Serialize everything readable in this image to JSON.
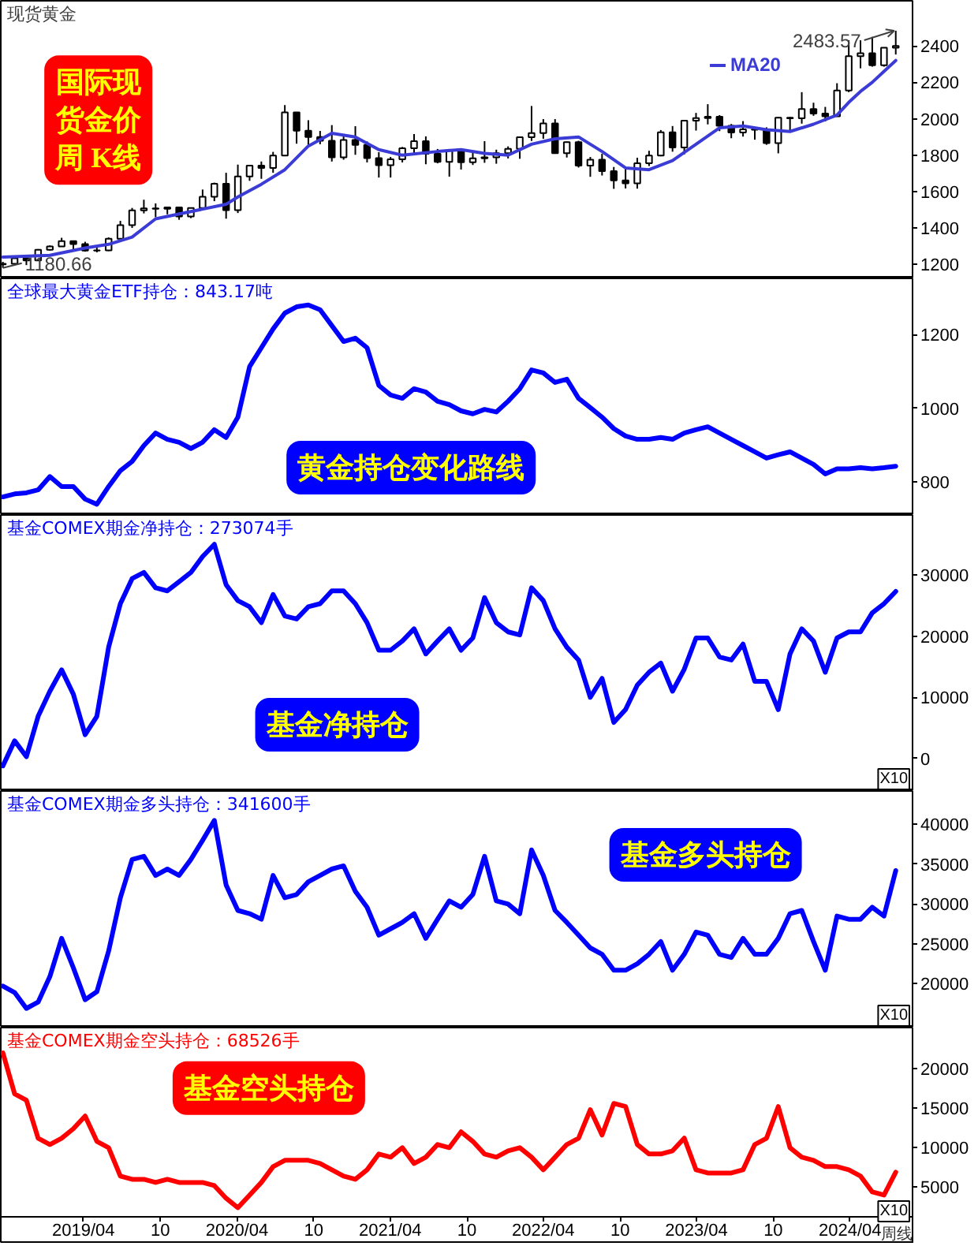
{
  "chart_data": [
    {
      "type": "candlestick",
      "title": "现货黄金",
      "color": "#000000",
      "x": [
        "2018-09-21",
        "2018-10-19",
        "2018-11-16",
        "2018-12-14",
        "2019-01-11",
        "2019-02-08",
        "2019-03-08",
        "2019-04-05",
        "2019-05-03",
        "2019-05-31",
        "2019-06-28",
        "2019-07-26",
        "2019-08-23",
        "2019-09-20",
        "2019-10-18",
        "2019-11-15",
        "2019-12-13",
        "2020-01-10",
        "2020-02-07",
        "2020-03-06",
        "2020-04-03",
        "2020-05-01",
        "2020-05-29",
        "2020-06-26",
        "2020-07-24",
        "2020-08-21",
        "2020-09-18",
        "2020-10-16",
        "2020-11-13",
        "2020-12-11",
        "2021-01-08",
        "2021-02-05",
        "2021-03-05",
        "2021-04-02",
        "2021-04-30",
        "2021-05-28",
        "2021-06-25",
        "2021-07-23",
        "2021-08-20",
        "2021-09-17",
        "2021-10-15",
        "2021-11-12",
        "2021-12-10",
        "2022-01-07",
        "2022-02-04",
        "2022-03-04",
        "2022-04-01",
        "2022-04-29",
        "2022-05-27",
        "2022-06-24",
        "2022-07-22",
        "2022-08-19",
        "2022-09-16",
        "2022-10-14",
        "2022-11-11",
        "2022-12-09",
        "2023-01-06",
        "2023-02-03",
        "2023-03-03",
        "2023-03-31",
        "2023-04-28",
        "2023-05-26",
        "2023-06-23",
        "2023-07-21",
        "2023-08-18",
        "2023-09-15",
        "2023-10-13",
        "2023-11-10",
        "2023-12-08",
        "2024-01-05",
        "2024-02-02",
        "2024-03-01",
        "2024-03-29",
        "2024-04-26",
        "2024-05-24",
        "2024-06-21",
        "2024-07-19"
      ],
      "ohlc": [
        [
          1200,
          1214,
          1180.66,
          1203
        ],
        [
          1203,
          1243,
          1200,
          1233
        ],
        [
          1233,
          1237,
          1196,
          1222
        ],
        [
          1222,
          1284,
          1221,
          1280
        ],
        [
          1280,
          1304,
          1276,
          1298
        ],
        [
          1298,
          1346,
          1297,
          1328
        ],
        [
          1328,
          1330,
          1281,
          1312
        ],
        [
          1312,
          1324,
          1270,
          1276
        ],
        [
          1276,
          1303,
          1266,
          1277
        ],
        [
          1277,
          1348,
          1273,
          1341
        ],
        [
          1341,
          1439,
          1340,
          1415
        ],
        [
          1415,
          1510,
          1400,
          1497
        ],
        [
          1497,
          1555,
          1480,
          1507
        ],
        [
          1507,
          1535,
          1459,
          1505
        ],
        [
          1505,
          1517,
          1475,
          1513
        ],
        [
          1513,
          1515,
          1445,
          1463
        ],
        [
          1463,
          1513,
          1454,
          1510
        ],
        [
          1510,
          1611,
          1508,
          1571
        ],
        [
          1571,
          1649,
          1547,
          1643
        ],
        [
          1643,
          1703,
          1451,
          1498
        ],
        [
          1498,
          1748,
          1482,
          1683
        ],
        [
          1683,
          1747,
          1659,
          1743
        ],
        [
          1743,
          1765,
          1670,
          1729
        ],
        [
          1729,
          1818,
          1703,
          1798
        ],
        [
          1798,
          2075,
          1795,
          2035
        ],
        [
          2035,
          2036,
          1863,
          1934
        ],
        [
          1934,
          1992,
          1848,
          1900
        ],
        [
          1900,
          1933,
          1860,
          1879
        ],
        [
          1879,
          1965,
          1765,
          1788
        ],
        [
          1788,
          1906,
          1775,
          1883
        ],
        [
          1883,
          1959,
          1802,
          1856
        ],
        [
          1856,
          1875,
          1760,
          1784
        ],
        [
          1784,
          1816,
          1677,
          1745
        ],
        [
          1745,
          1790,
          1677,
          1777
        ],
        [
          1777,
          1845,
          1760,
          1838
        ],
        [
          1838,
          1916,
          1808,
          1877
        ],
        [
          1877,
          1903,
          1750,
          1808
        ],
        [
          1808,
          1834,
          1755,
          1763
        ],
        [
          1763,
          1834,
          1682,
          1827
        ],
        [
          1827,
          1834,
          1721,
          1761
        ],
        [
          1761,
          1814,
          1746,
          1783
        ],
        [
          1783,
          1877,
          1758,
          1788
        ],
        [
          1788,
          1830,
          1753,
          1811
        ],
        [
          1811,
          1848,
          1782,
          1835
        ],
        [
          1835,
          1902,
          1780,
          1898
        ],
        [
          1898,
          2070,
          1878,
          1921
        ],
        [
          1921,
          1998,
          1890,
          1974
        ],
        [
          1974,
          1998,
          1808,
          1811
        ],
        [
          1811,
          1874,
          1787,
          1871
        ],
        [
          1871,
          1879,
          1732,
          1742
        ],
        [
          1742,
          1790,
          1681,
          1775
        ],
        [
          1775,
          1807,
          1688,
          1712
        ],
        [
          1712,
          1735,
          1615,
          1661
        ],
        [
          1661,
          1729,
          1617,
          1645
        ],
        [
          1645,
          1786,
          1616,
          1755
        ],
        [
          1755,
          1824,
          1740,
          1798
        ],
        [
          1798,
          1938,
          1794,
          1926
        ],
        [
          1926,
          1960,
          1819,
          1842
        ],
        [
          1842,
          1990,
          1804,
          1989
        ],
        [
          1989,
          2032,
          1935,
          2004
        ],
        [
          2004,
          2080,
          1969,
          2011
        ],
        [
          2011,
          2020,
          1932,
          1961
        ],
        [
          1961,
          1971,
          1893,
          1925
        ],
        [
          1925,
          1987,
          1902,
          1942
        ],
        [
          1942,
          1949,
          1885,
          1940
        ],
        [
          1940,
          1953,
          1857,
          1866
        ],
        [
          1866,
          2009,
          1810,
          2006
        ],
        [
          2006,
          2009,
          1931,
          2002
        ],
        [
          2002,
          2146,
          1973,
          2053
        ],
        [
          2053,
          2088,
          2016,
          2029
        ],
        [
          2029,
          2065,
          1985,
          2013
        ],
        [
          2013,
          2195,
          2011,
          2155
        ],
        [
          2155,
          2431,
          2146,
          2344
        ],
        [
          2344,
          2431,
          2277,
          2360
        ],
        [
          2360,
          2450,
          2286,
          2294
        ],
        [
          2294,
          2392,
          2286,
          2390
        ],
        [
          2390,
          2483.57,
          2353,
          2400
        ]
      ],
      "series": [
        {
          "type": "line",
          "name": "MA20",
          "color": "#3b3bd6",
          "x": [
            "2018-09-21",
            "2019-01-11",
            "2019-04-05",
            "2019-05-31",
            "2019-07-26",
            "2019-09-20",
            "2019-12-13",
            "2020-03-06",
            "2020-04-03",
            "2020-05-29",
            "2020-07-24",
            "2020-09-18",
            "2020-11-13",
            "2021-01-08",
            "2021-03-05",
            "2021-04-30",
            "2021-07-23",
            "2021-09-17",
            "2021-11-12",
            "2022-01-07",
            "2022-03-04",
            "2022-04-29",
            "2022-06-24",
            "2022-08-19",
            "2022-10-14",
            "2022-12-09",
            "2023-02-03",
            "2023-03-31",
            "2023-05-26",
            "2023-07-21",
            "2023-09-15",
            "2023-11-10",
            "2024-01-05",
            "2024-03-01",
            "2024-03-29",
            "2024-04-26",
            "2024-05-24",
            "2024-06-21",
            "2024-07-19"
          ],
          "values": [
            1240,
            1250,
            1290,
            1310,
            1350,
            1450,
            1490,
            1530,
            1570,
            1640,
            1720,
            1850,
            1920,
            1900,
            1830,
            1800,
            1820,
            1830,
            1810,
            1800,
            1860,
            1890,
            1900,
            1820,
            1730,
            1720,
            1770,
            1860,
            1950,
            1960,
            1940,
            1930,
            1970,
            2020,
            2090,
            2150,
            2200,
            2260,
            2320
          ]
        }
      ],
      "xlim": [
        "2018-09-16",
        "2024-08-28"
      ],
      "ylim": [
        1123,
        2648
      ],
      "yticks": [
        1200,
        1400,
        1600,
        1800,
        2000,
        2200,
        2400
      ],
      "tick_labels": "y",
      "legend": "top right",
      "annotations": [
        "国际现货金价周 K线",
        {
          "text": "2483.57",
          "x": "2024-07-19",
          "y": 2483.57
        },
        {
          "text": "1180.66",
          "x": "2018-09-21",
          "y": 1180.66
        }
      ]
    },
    {
      "type": "line",
      "title": "全球最大黄金ETF持仓：843.17吨",
      "x": [
        "2018-09-21",
        "2018-10-19",
        "2018-11-16",
        "2018-12-14",
        "2019-01-11",
        "2019-02-08",
        "2019-03-08",
        "2019-04-05",
        "2019-05-03",
        "2019-05-31",
        "2019-06-28",
        "2019-07-26",
        "2019-08-23",
        "2019-09-20",
        "2019-10-18",
        "2019-11-15",
        "2019-12-13",
        "2020-01-10",
        "2020-02-07",
        "2020-03-06",
        "2020-04-03",
        "2020-05-01",
        "2020-05-29",
        "2020-06-26",
        "2020-07-24",
        "2020-08-21",
        "2020-09-18",
        "2020-10-16",
        "2020-11-13",
        "2020-12-11",
        "2021-01-08",
        "2021-02-05",
        "2021-03-05",
        "2021-04-02",
        "2021-04-30",
        "2021-05-28",
        "2021-06-25",
        "2021-07-23",
        "2021-08-20",
        "2021-09-17",
        "2021-10-15",
        "2021-11-12",
        "2021-12-10",
        "2022-01-07",
        "2022-02-04",
        "2022-03-04",
        "2022-04-01",
        "2022-04-29",
        "2022-05-27",
        "2022-06-24",
        "2022-07-22",
        "2022-08-19",
        "2022-09-16",
        "2022-10-14",
        "2022-11-11",
        "2022-12-09",
        "2023-01-06",
        "2023-02-03",
        "2023-03-03",
        "2023-03-31",
        "2023-04-28",
        "2023-05-26",
        "2023-06-23",
        "2023-07-21",
        "2023-08-18",
        "2023-09-15",
        "2023-10-13",
        "2023-11-10",
        "2023-12-08",
        "2024-01-05",
        "2024-02-02",
        "2024-03-01",
        "2024-03-29",
        "2024-04-26",
        "2024-05-24",
        "2024-06-21",
        "2024-07-19"
      ],
      "series": [
        {
          "color": "#0000ff",
          "values": [
            760,
            768,
            771,
            779,
            815,
            788,
            788,
            754,
            740,
            788,
            831,
            856,
            899,
            933,
            916,
            908,
            891,
            908,
            942,
            921,
            976,
            1113,
            1164,
            1215,
            1258,
            1275,
            1280,
            1267,
            1224,
            1181,
            1190,
            1164,
            1062,
            1036,
            1027,
            1053,
            1044,
            1019,
            1010,
            993,
            985,
            997,
            990,
            1019,
            1053,
            1104,
            1096,
            1070,
            1079,
            1027,
            1002,
            976,
            945,
            925,
            916,
            916,
            921,
            916,
            933,
            942,
            950,
            933,
            916,
            899,
            882,
            865,
            874,
            882,
            865,
            848,
            822,
            836,
            836,
            839,
            836,
            839,
            843
          ]
        }
      ],
      "xlim": [
        "2018-09-16",
        "2024-08-28"
      ],
      "ylim": [
        711,
        1352
      ],
      "yticks": [
        800,
        1000,
        1200
      ],
      "tick_labels": "y",
      "annotations": [
        "黄金持仓变化路线"
      ]
    },
    {
      "type": "line",
      "title": "基金COMEX期金净持仓：273074手",
      "x": [
        "2018-09-21",
        "2018-10-19",
        "2018-11-16",
        "2018-12-14",
        "2019-01-11",
        "2019-02-08",
        "2019-03-08",
        "2019-04-05",
        "2019-05-03",
        "2019-05-31",
        "2019-06-28",
        "2019-07-26",
        "2019-08-23",
        "2019-09-20",
        "2019-10-18",
        "2019-11-15",
        "2019-12-13",
        "2020-01-10",
        "2020-02-07",
        "2020-03-06",
        "2020-04-03",
        "2020-05-01",
        "2020-05-29",
        "2020-06-26",
        "2020-07-24",
        "2020-08-21",
        "2020-09-18",
        "2020-10-16",
        "2020-11-13",
        "2020-12-11",
        "2021-01-08",
        "2021-02-05",
        "2021-03-05",
        "2021-04-02",
        "2021-04-30",
        "2021-05-28",
        "2021-06-25",
        "2021-07-23",
        "2021-08-20",
        "2021-09-17",
        "2021-10-15",
        "2021-11-12",
        "2021-12-10",
        "2022-01-07",
        "2022-02-04",
        "2022-03-04",
        "2022-04-01",
        "2022-04-29",
        "2022-05-27",
        "2022-06-24",
        "2022-07-22",
        "2022-08-19",
        "2022-09-16",
        "2022-10-14",
        "2022-11-11",
        "2022-12-09",
        "2023-01-06",
        "2023-02-03",
        "2023-03-03",
        "2023-03-31",
        "2023-04-28",
        "2023-05-26",
        "2023-06-23",
        "2023-07-21",
        "2023-08-18",
        "2023-09-15",
        "2023-10-13",
        "2023-11-10",
        "2023-12-08",
        "2024-01-05",
        "2024-02-02",
        "2024-03-01",
        "2024-03-29",
        "2024-04-26",
        "2024-05-24",
        "2024-06-21",
        "2024-07-19"
      ],
      "series": [
        {
          "color": "#0000ff",
          "values": [
            -1200,
            2900,
            300,
            6900,
            11000,
            14500,
            10500,
            3900,
            6900,
            18200,
            25300,
            29400,
            30400,
            27900,
            27400,
            28900,
            30400,
            33000,
            35000,
            28400,
            25800,
            24800,
            22200,
            26800,
            23300,
            22800,
            24800,
            25300,
            27400,
            27400,
            25300,
            22200,
            17700,
            17700,
            19200,
            21200,
            17100,
            19200,
            21200,
            17700,
            19700,
            26300,
            22200,
            20700,
            20200,
            27900,
            25800,
            21200,
            18200,
            16100,
            10000,
            13100,
            5900,
            8000,
            12000,
            14100,
            15600,
            11000,
            14600,
            19700,
            19700,
            16600,
            16100,
            18700,
            12600,
            12600,
            8000,
            17100,
            21200,
            19200,
            14100,
            19700,
            20700,
            20700,
            23800,
            25300,
            27300
          ]
        }
      ],
      "xlim": [
        "2018-09-16",
        "2024-08-28"
      ],
      "ylim": [
        -5300,
        39800
      ],
      "yticks": [
        0,
        10000,
        20000,
        30000
      ],
      "tick_labels": "y",
      "annotations": [
        "基金净持仓",
        "X10"
      ]
    },
    {
      "type": "line",
      "title": "基金COMEX期金多头持仓：341600手",
      "x": [
        "2018-09-21",
        "2018-10-19",
        "2018-11-16",
        "2018-12-14",
        "2019-01-11",
        "2019-02-08",
        "2019-03-08",
        "2019-04-05",
        "2019-05-03",
        "2019-05-31",
        "2019-06-28",
        "2019-07-26",
        "2019-08-23",
        "2019-09-20",
        "2019-10-18",
        "2019-11-15",
        "2019-12-13",
        "2020-01-10",
        "2020-02-07",
        "2020-03-06",
        "2020-04-03",
        "2020-05-01",
        "2020-05-29",
        "2020-06-26",
        "2020-07-24",
        "2020-08-21",
        "2020-09-18",
        "2020-10-16",
        "2020-11-13",
        "2020-12-11",
        "2021-01-08",
        "2021-02-05",
        "2021-03-05",
        "2021-04-02",
        "2021-04-30",
        "2021-05-28",
        "2021-06-25",
        "2021-07-23",
        "2021-08-20",
        "2021-09-17",
        "2021-10-15",
        "2021-11-12",
        "2021-12-10",
        "2022-01-07",
        "2022-02-04",
        "2022-03-04",
        "2022-04-01",
        "2022-04-29",
        "2022-05-27",
        "2022-06-24",
        "2022-07-22",
        "2022-08-19",
        "2022-09-16",
        "2022-10-14",
        "2022-11-11",
        "2022-12-09",
        "2023-01-06",
        "2023-02-03",
        "2023-03-03",
        "2023-03-31",
        "2023-04-28",
        "2023-05-26",
        "2023-06-23",
        "2023-07-21",
        "2023-08-18",
        "2023-09-15",
        "2023-10-13",
        "2023-11-10",
        "2023-12-08",
        "2024-01-05",
        "2024-02-02",
        "2024-03-01",
        "2024-03-29",
        "2024-04-26",
        "2024-05-24",
        "2024-06-21",
        "2024-07-19"
      ],
      "series": [
        {
          "color": "#0000ff",
          "values": [
            19700,
            18900,
            16900,
            17700,
            20900,
            25700,
            22000,
            18000,
            19000,
            24100,
            30800,
            35600,
            36000,
            33600,
            34400,
            33600,
            35600,
            38000,
            40500,
            32400,
            29200,
            28800,
            28100,
            33600,
            30800,
            31200,
            32800,
            33600,
            34400,
            34800,
            31600,
            29600,
            26100,
            26900,
            27700,
            28800,
            25700,
            28100,
            30400,
            29600,
            31200,
            36000,
            30400,
            30000,
            28800,
            36800,
            33600,
            29200,
            27700,
            26100,
            24500,
            23700,
            21700,
            21700,
            22500,
            23700,
            25300,
            21700,
            23700,
            26500,
            26100,
            23700,
            23300,
            25700,
            23700,
            23700,
            25700,
            28800,
            29200,
            25300,
            21700,
            28500,
            28100,
            28100,
            29600,
            28500,
            34200
          ]
        }
      ],
      "xlim": [
        "2018-09-16",
        "2024-08-28"
      ],
      "ylim": [
        14500,
        44200
      ],
      "yticks": [
        20000,
        25000,
        30000,
        35000,
        40000
      ],
      "tick_labels": "y",
      "annotations": [
        "基金多头持仓",
        "X10"
      ]
    },
    {
      "type": "line",
      "title": "基金COMEX期金空头持仓：68526手",
      "x": [
        "2018-09-21",
        "2018-10-19",
        "2018-11-16",
        "2018-12-14",
        "2019-01-11",
        "2019-02-08",
        "2019-03-08",
        "2019-04-05",
        "2019-05-03",
        "2019-05-31",
        "2019-06-28",
        "2019-07-26",
        "2019-08-23",
        "2019-09-20",
        "2019-10-18",
        "2019-11-15",
        "2019-12-13",
        "2020-01-10",
        "2020-02-07",
        "2020-03-06",
        "2020-04-03",
        "2020-05-01",
        "2020-05-29",
        "2020-06-26",
        "2020-07-24",
        "2020-08-21",
        "2020-09-18",
        "2020-10-16",
        "2020-11-13",
        "2020-12-11",
        "2021-01-08",
        "2021-02-05",
        "2021-03-05",
        "2021-04-02",
        "2021-04-30",
        "2021-05-28",
        "2021-06-25",
        "2021-07-23",
        "2021-08-20",
        "2021-09-17",
        "2021-10-15",
        "2021-11-12",
        "2021-12-10",
        "2022-01-07",
        "2022-02-04",
        "2022-03-04",
        "2022-04-01",
        "2022-04-29",
        "2022-05-27",
        "2022-06-24",
        "2022-07-22",
        "2022-08-19",
        "2022-09-16",
        "2022-10-14",
        "2022-11-11",
        "2022-12-09",
        "2023-01-06",
        "2023-02-03",
        "2023-03-03",
        "2023-03-31",
        "2023-04-28",
        "2023-05-26",
        "2023-06-23",
        "2023-07-21",
        "2023-08-18",
        "2023-09-15",
        "2023-10-13",
        "2023-11-10",
        "2023-12-08",
        "2024-01-05",
        "2024-02-02",
        "2024-03-01",
        "2024-03-29",
        "2024-04-26",
        "2024-05-24",
        "2024-06-21",
        "2024-07-19"
      ],
      "series": [
        {
          "color": "#ff0000",
          "values": [
            22000,
            16800,
            16000,
            11200,
            10400,
            11200,
            12400,
            14000,
            10800,
            10000,
            6400,
            6000,
            6000,
            5600,
            6000,
            5600,
            5600,
            5600,
            5200,
            3600,
            2400,
            4000,
            5600,
            7600,
            8400,
            8400,
            8400,
            8000,
            7200,
            6400,
            6000,
            7200,
            9200,
            8800,
            10000,
            8000,
            8800,
            10400,
            10000,
            12000,
            10800,
            9200,
            8800,
            9600,
            10000,
            8800,
            7200,
            8800,
            10400,
            11200,
            14800,
            11600,
            15600,
            15200,
            10400,
            9200,
            9200,
            9600,
            11200,
            7200,
            6800,
            6800,
            6800,
            7200,
            10400,
            11200,
            15200,
            10000,
            8800,
            8400,
            7600,
            7600,
            7200,
            6400,
            4400,
            4000,
            6900
          ]
        }
      ],
      "xlim": [
        "2018-09-16",
        "2024-08-28"
      ],
      "ylim": [
        1250,
        25200
      ],
      "yticks": [
        5000,
        10000,
        15000,
        20000
      ],
      "xticks": [
        {
          "value": "2019-04",
          "label": "2019/04"
        },
        {
          "value": "2019-10",
          "label": "10"
        },
        {
          "value": "2020-04",
          "label": "2020/04"
        },
        {
          "value": "2020-10",
          "label": "10"
        },
        {
          "value": "2021-04",
          "label": "2021/04"
        },
        {
          "value": "2021-10",
          "label": "10"
        },
        {
          "value": "2022-04",
          "label": "2022/04"
        },
        {
          "value": "2022-10",
          "label": "10"
        },
        {
          "value": "2023-04",
          "label": "2023/04"
        },
        {
          "value": "2023-10",
          "label": "10"
        },
        {
          "value": "2024-04",
          "label": "2024/04"
        }
      ],
      "annotations": [
        "基金空头持仓",
        "X10",
        "周线"
      ]
    }
  ]
}
